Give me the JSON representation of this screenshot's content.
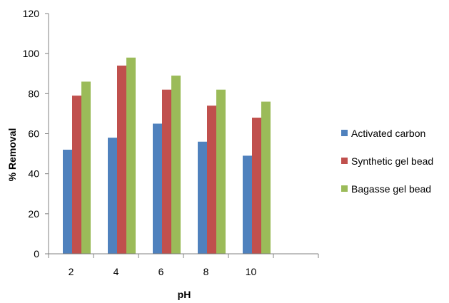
{
  "chart_data": {
    "type": "bar",
    "xlabel": "pH",
    "ylabel": "% Removal",
    "categories": [
      "2",
      "4",
      "6",
      "8",
      "10"
    ],
    "ylim": [
      0,
      120
    ],
    "yticks": [
      "0",
      "20",
      "40",
      "60",
      "80",
      "100",
      "120"
    ],
    "grid": false,
    "legend_position": "right",
    "series": [
      {
        "name": "Activated carbon",
        "color": "#4F81BD",
        "values": [
          52,
          58,
          65,
          56,
          49
        ]
      },
      {
        "name": "Synthetic gel bead",
        "color": "#C0504D",
        "values": [
          79,
          94,
          82,
          74,
          68
        ]
      },
      {
        "name": "Bagasse gel bead",
        "color": "#9BBB59",
        "values": [
          86,
          98,
          89,
          82,
          76
        ]
      }
    ]
  }
}
